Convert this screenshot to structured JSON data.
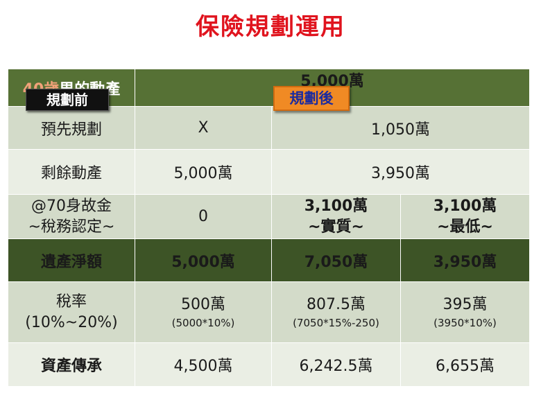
{
  "page": {
    "title": "保險規劃運用"
  },
  "table": {
    "header": {
      "label_age": "40歲",
      "label_rest": "男的動產",
      "value": "5,000萬",
      "tag_before": "規劃前",
      "tag_after": "規劃後"
    },
    "rows": {
      "preplan": {
        "label": "預先規劃",
        "before": "X",
        "after": "1,050萬"
      },
      "remaining": {
        "label": "剩餘動產",
        "before": "5,000萬",
        "after": "3,950萬"
      },
      "deemed": {
        "label_line1": "@70身故金",
        "label_line2": "~稅務認定~",
        "before": "0",
        "real_value": "3,100萬",
        "real_note": "~實質~",
        "min_value": "3,100萬",
        "min_note": "~最低~"
      },
      "net_estate": {
        "label": "遺產淨額",
        "before": "5,000萬",
        "real": "7,050萬",
        "min": "3,950萬"
      },
      "tax": {
        "label_line1": "稅率",
        "label_line2": "(10%~20%)",
        "before_value": "500萬",
        "before_formula": "(5000*10%)",
        "real_value": "807.5萬",
        "real_formula": "(7050*15%-250)",
        "min_value": "395萬",
        "min_formula": "(3950*10%)"
      },
      "inheritance": {
        "label": "資產傳承",
        "before": "4,500萬",
        "real": "6,242.5萬",
        "min": "6,655萬"
      }
    }
  },
  "colors": {
    "title": "#e0141e",
    "header_bg": "#567135",
    "row_light": "#d3dbc9",
    "row_lighter": "#eaeee4",
    "net_bg": "#3d5426",
    "net_text": "#ffe600",
    "tag_before_bg": "#111111",
    "tag_after_bg": "#f08a24",
    "real_text": "#e0141e",
    "min_text": "#1328d6"
  }
}
